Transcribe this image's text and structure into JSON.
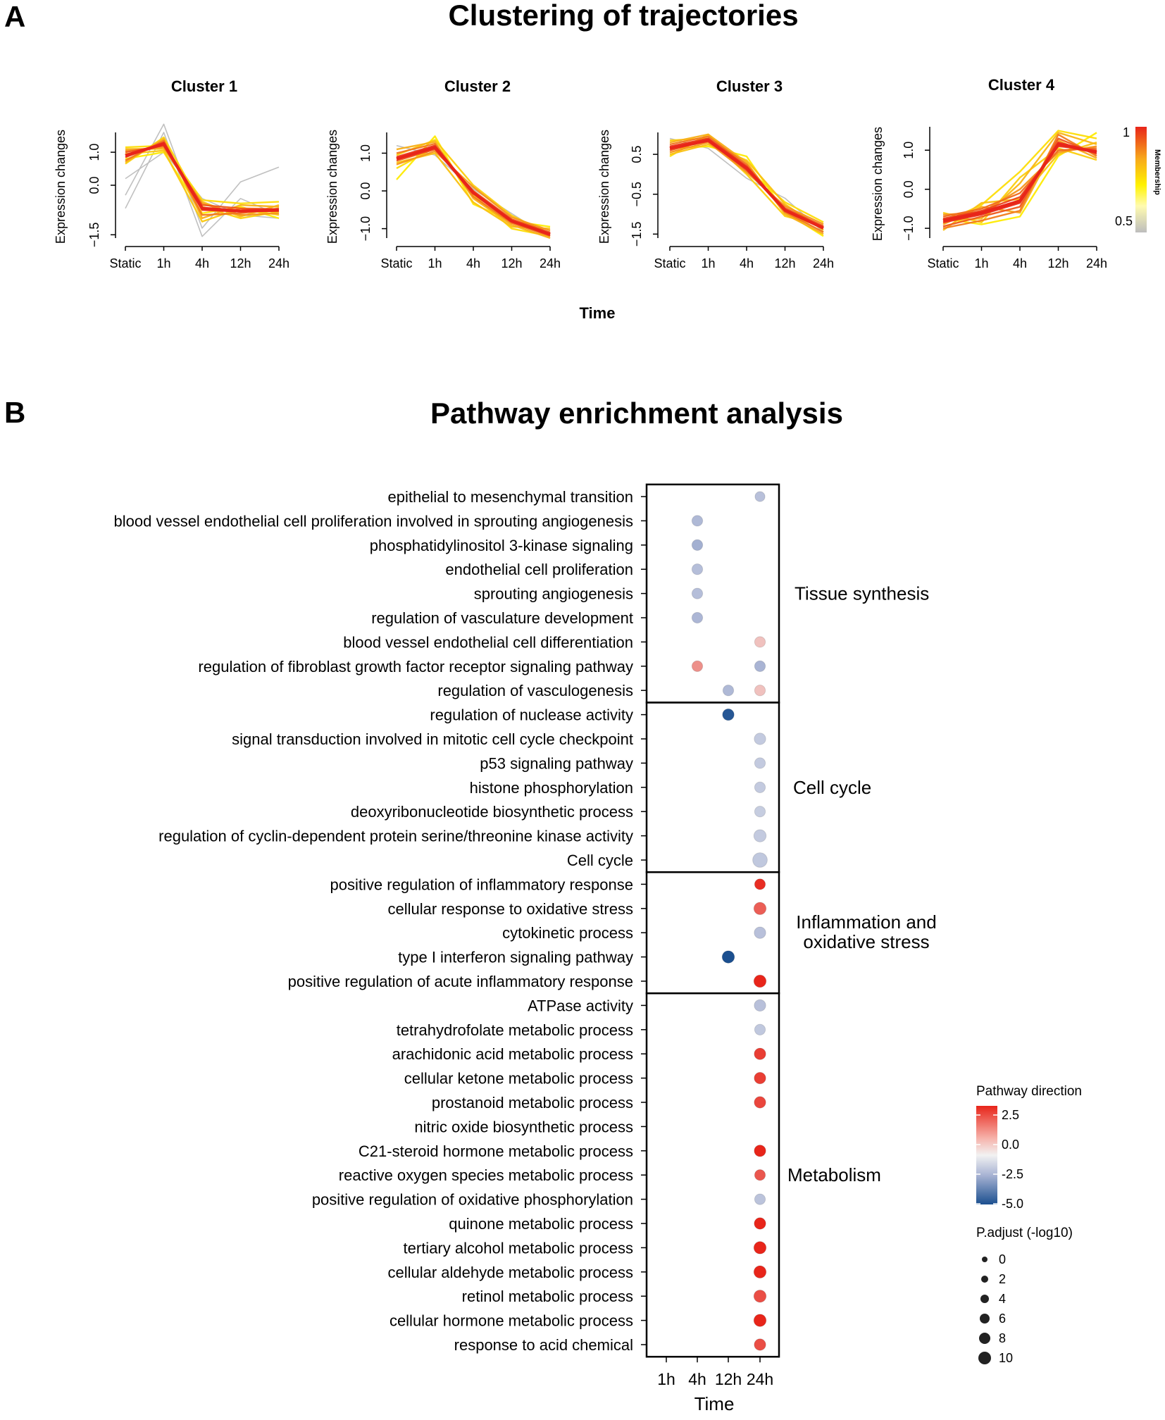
{
  "panel_a": {
    "letter": "A",
    "title": "Clustering of trajectories",
    "x_title": "Time",
    "membership_legend": {
      "title": "Membership",
      "max_label": "1",
      "min_label": "0.5"
    }
  },
  "panel_b": {
    "letter": "B",
    "title": "Pathway enrichment analysis"
  },
  "colors": {
    "membership_high": "#e8251a",
    "membership_mid": "#f7a81b",
    "membership_low": "#fff200",
    "membership_none": "#bdbdbd",
    "direction_high": "#e8251a",
    "direction_zero": "#f2f2f2",
    "direction_low": "#1b4f8f"
  },
  "chart_data": [
    {
      "type": "line",
      "title": "Cluster 1",
      "xlabel": "Time",
      "ylabel": "Expression changes",
      "categories": [
        "Static",
        "1h",
        "4h",
        "12h",
        "24h"
      ],
      "yticks": [
        "-1.5",
        "0.0",
        "1.0"
      ],
      "ylim": [
        -1.6,
        1.6
      ],
      "centroid": [
        0.9,
        1.25,
        -0.7,
        -0.78,
        -0.75
      ],
      "series": [
        {
          "name": "member",
          "membership": 0.95,
          "values": [
            0.85,
            1.3,
            -0.75,
            -0.8,
            -0.78
          ]
        },
        {
          "name": "member",
          "membership": 0.9,
          "values": [
            1.0,
            1.2,
            -0.6,
            -0.7,
            -0.72
          ]
        },
        {
          "name": "member",
          "membership": 0.85,
          "values": [
            0.75,
            1.35,
            -0.9,
            -0.85,
            -0.7
          ]
        },
        {
          "name": "member",
          "membership": 0.8,
          "values": [
            1.05,
            1.15,
            -0.55,
            -0.9,
            -0.85
          ]
        },
        {
          "name": "member",
          "membership": 0.75,
          "values": [
            0.7,
            1.4,
            -1.0,
            -0.6,
            -0.65
          ]
        },
        {
          "name": "member",
          "membership": 0.72,
          "values": [
            1.1,
            1.1,
            -0.5,
            -0.95,
            -0.6
          ]
        },
        {
          "name": "member",
          "membership": 0.68,
          "values": [
            0.95,
            1.05,
            -1.1,
            -0.7,
            -0.9
          ]
        },
        {
          "name": "member",
          "membership": 0.65,
          "values": [
            0.65,
            1.45,
            -0.65,
            -1.0,
            -0.8
          ]
        },
        {
          "name": "member",
          "membership": 0.62,
          "values": [
            1.15,
            1.2,
            -0.45,
            -0.55,
            -0.5
          ]
        },
        {
          "name": "member",
          "membership": 0.58,
          "values": [
            0.8,
            1.0,
            -0.85,
            -0.65,
            -1.0
          ]
        },
        {
          "name": "member",
          "membership": 0.5,
          "values": [
            -0.3,
            1.85,
            -1.3,
            0.1,
            0.55
          ]
        },
        {
          "name": "member",
          "membership": 0.5,
          "values": [
            -0.7,
            1.6,
            -1.55,
            -0.4,
            -0.9
          ]
        },
        {
          "name": "member",
          "membership": 0.52,
          "values": [
            0.2,
            1.0,
            -0.4,
            -0.9,
            -1.0
          ]
        }
      ]
    },
    {
      "type": "line",
      "title": "Cluster 2",
      "xlabel": "Time",
      "ylabel": "Expression changes",
      "categories": [
        "Static",
        "1h",
        "4h",
        "12h",
        "24h"
      ],
      "yticks": [
        "-1.0",
        "0.0",
        "1.0"
      ],
      "ylim": [
        -1.25,
        1.55
      ],
      "centroid": [
        0.85,
        1.15,
        -0.05,
        -0.8,
        -1.15
      ],
      "series": [
        {
          "name": "member",
          "membership": 0.95,
          "values": [
            0.9,
            1.2,
            -0.05,
            -0.8,
            -1.18
          ]
        },
        {
          "name": "member",
          "membership": 0.9,
          "values": [
            0.8,
            1.1,
            0.0,
            -0.75,
            -1.1
          ]
        },
        {
          "name": "member",
          "membership": 0.85,
          "values": [
            1.0,
            1.25,
            -0.15,
            -0.85,
            -1.2
          ]
        },
        {
          "name": "member",
          "membership": 0.8,
          "values": [
            0.7,
            1.05,
            0.1,
            -0.7,
            -1.05
          ]
        },
        {
          "name": "member",
          "membership": 0.75,
          "values": [
            1.1,
            1.3,
            -0.2,
            -0.9,
            -1.25
          ]
        },
        {
          "name": "member",
          "membership": 0.7,
          "values": [
            0.75,
            1.0,
            -0.3,
            -0.95,
            -1.0
          ]
        },
        {
          "name": "member",
          "membership": 0.66,
          "values": [
            0.95,
            1.35,
            0.15,
            -0.65,
            -1.15
          ]
        },
        {
          "name": "member",
          "membership": 0.62,
          "values": [
            0.6,
            1.15,
            -0.1,
            -1.0,
            -1.2
          ]
        },
        {
          "name": "member",
          "membership": 0.58,
          "values": [
            0.3,
            1.45,
            -0.35,
            -0.8,
            -0.95
          ]
        },
        {
          "name": "member",
          "membership": 0.54,
          "values": [
            1.2,
            0.95,
            0.05,
            -0.6,
            -1.25
          ]
        }
      ]
    },
    {
      "type": "line",
      "title": "Cluster 3",
      "xlabel": "Time",
      "ylabel": "Expression changes",
      "categories": [
        "Static",
        "1h",
        "4h",
        "12h",
        "24h"
      ],
      "yticks": [
        "-1.5",
        "-0.5",
        "0.5"
      ],
      "ylim": [
        -1.6,
        1.05
      ],
      "centroid": [
        0.65,
        0.85,
        0.15,
        -0.9,
        -1.35
      ],
      "series": [
        {
          "name": "member",
          "membership": 0.95,
          "values": [
            0.7,
            0.9,
            0.2,
            -0.9,
            -1.35
          ]
        },
        {
          "name": "member",
          "membership": 0.9,
          "values": [
            0.6,
            0.85,
            0.1,
            -0.85,
            -1.3
          ]
        },
        {
          "name": "member",
          "membership": 0.85,
          "values": [
            0.75,
            0.95,
            0.25,
            -0.95,
            -1.45
          ]
        },
        {
          "name": "member",
          "membership": 0.8,
          "values": [
            0.55,
            0.8,
            0.05,
            -0.8,
            -1.25
          ]
        },
        {
          "name": "member",
          "membership": 0.75,
          "values": [
            0.8,
            1.0,
            0.3,
            -1.0,
            -1.5
          ]
        },
        {
          "name": "member",
          "membership": 0.7,
          "values": [
            0.5,
            0.75,
            0.35,
            -0.75,
            -1.4
          ]
        },
        {
          "name": "member",
          "membership": 0.66,
          "values": [
            0.85,
            0.9,
            0.0,
            -1.05,
            -1.3
          ]
        },
        {
          "name": "member",
          "membership": 0.62,
          "values": [
            0.45,
            1.0,
            0.15,
            -0.7,
            -1.2
          ]
        },
        {
          "name": "member",
          "membership": 0.58,
          "values": [
            0.65,
            0.7,
            0.45,
            -0.95,
            -1.55
          ]
        },
        {
          "name": "member",
          "membership": 0.54,
          "values": [
            0.9,
            0.65,
            -0.1,
            -0.6,
            -1.45
          ]
        }
      ]
    },
    {
      "type": "line",
      "title": "Cluster 4",
      "xlabel": "Time",
      "ylabel": "Expression changes",
      "categories": [
        "Static",
        "1h",
        "4h",
        "12h",
        "24h"
      ],
      "yticks": [
        "-1.0",
        "0.0",
        "1.0"
      ],
      "ylim": [
        -1.25,
        1.6
      ],
      "centroid": [
        -0.8,
        -0.6,
        -0.3,
        1.15,
        0.95
      ],
      "series": [
        {
          "name": "member",
          "membership": 0.97,
          "values": [
            -0.85,
            -0.65,
            -0.35,
            1.2,
            0.95
          ]
        },
        {
          "name": "member",
          "membership": 0.93,
          "values": [
            -0.75,
            -0.55,
            -0.2,
            1.1,
            1.0
          ]
        },
        {
          "name": "member",
          "membership": 0.9,
          "values": [
            -0.95,
            -0.7,
            -0.45,
            1.3,
            0.9
          ]
        },
        {
          "name": "member",
          "membership": 0.87,
          "values": [
            -0.7,
            -0.5,
            -0.1,
            1.0,
            1.05
          ]
        },
        {
          "name": "member",
          "membership": 0.84,
          "values": [
            -1.0,
            -0.8,
            -0.55,
            1.4,
            0.85
          ]
        },
        {
          "name": "member",
          "membership": 0.8,
          "values": [
            -0.65,
            -0.6,
            0.0,
            0.95,
            1.1
          ]
        },
        {
          "name": "member",
          "membership": 0.77,
          "values": [
            -0.9,
            -0.45,
            -0.6,
            1.25,
            0.8
          ]
        },
        {
          "name": "member",
          "membership": 0.73,
          "values": [
            -0.8,
            -0.75,
            0.15,
            1.45,
            1.15
          ]
        },
        {
          "name": "member",
          "membership": 0.7,
          "values": [
            -1.05,
            -0.35,
            -0.25,
            0.9,
            1.2
          ]
        },
        {
          "name": "member",
          "membership": 0.66,
          "values": [
            -0.6,
            -0.85,
            0.3,
            1.05,
            0.75
          ]
        },
        {
          "name": "member",
          "membership": 0.62,
          "values": [
            -0.85,
            -0.4,
            0.45,
            1.5,
            1.3
          ]
        },
        {
          "name": "member",
          "membership": 0.58,
          "values": [
            -0.75,
            -0.9,
            -0.7,
            0.85,
            1.45
          ]
        }
      ]
    },
    {
      "type": "scatter",
      "title": "Pathway enrichment analysis",
      "xlabel": "Time",
      "x_categories": [
        "1h",
        "4h",
        "12h",
        "24h"
      ],
      "pathways": [
        "epithelial to mesenchymal transition",
        "blood vessel endothelial cell proliferation involved in sprouting angiogenesis",
        "phosphatidylinositol 3-kinase signaling",
        "endothelial cell proliferation",
        "sprouting angiogenesis",
        "regulation of vasculature development",
        "blood vessel endothelial cell differentiation",
        "regulation of fibroblast growth factor receptor signaling pathway",
        "regulation of vasculogenesis",
        "regulation of nuclease activity",
        "signal transduction involved in mitotic cell cycle checkpoint",
        "p53 signaling pathway",
        "histone phosphorylation",
        "deoxyribonucleotide biosynthetic process",
        "regulation of cyclin-dependent protein serine/threonine kinase activity",
        "Cell cycle",
        "positive regulation of inflammatory response",
        "cellular response to oxidative stress",
        "cytokinetic process",
        "type I interferon signaling pathway",
        "positive regulation of acute inflammatory response",
        "ATPase activity",
        "tetrahydrofolate metabolic process",
        "arachidonic acid metabolic process",
        "cellular ketone metabolic process",
        "prostanoid metabolic process",
        "nitric oxide biosynthetic process",
        "C21-steroid hormone metabolic process",
        "reactive oxygen species metabolic process",
        "positive regulation of oxidative phosphorylation",
        "quinone metabolic process",
        "tertiary alcohol metabolic process",
        "cellular aldehyde metabolic process",
        "retinol metabolic process",
        "cellular hormone metabolic process",
        "response to acid chemical"
      ],
      "groups": [
        {
          "label": "Tissue synthesis",
          "start": 0,
          "end": 8
        },
        {
          "label": "Cell cycle",
          "start": 9,
          "end": 15
        },
        {
          "label": "Inflammation and\noxidative stress",
          "start": 16,
          "end": 20
        },
        {
          "label": "Metabolism",
          "start": 21,
          "end": 35
        }
      ],
      "points": [
        {
          "pathway": 0,
          "time": "24h",
          "direction": -2.0,
          "p_adjust": 2
        },
        {
          "pathway": 1,
          "time": "4h",
          "direction": -2.3,
          "p_adjust": 3
        },
        {
          "pathway": 2,
          "time": "4h",
          "direction": -2.6,
          "p_adjust": 3
        },
        {
          "pathway": 3,
          "time": "4h",
          "direction": -2.1,
          "p_adjust": 3
        },
        {
          "pathway": 4,
          "time": "4h",
          "direction": -2.1,
          "p_adjust": 3
        },
        {
          "pathway": 5,
          "time": "4h",
          "direction": -2.4,
          "p_adjust": 3
        },
        {
          "pathway": 6,
          "time": "24h",
          "direction": 0.6,
          "p_adjust": 3
        },
        {
          "pathway": 7,
          "time": "4h",
          "direction": 1.2,
          "p_adjust": 3
        },
        {
          "pathway": 7,
          "time": "24h",
          "direction": -2.5,
          "p_adjust": 3
        },
        {
          "pathway": 8,
          "time": "12h",
          "direction": -2.3,
          "p_adjust": 3
        },
        {
          "pathway": 8,
          "time": "24h",
          "direction": 0.6,
          "p_adjust": 3
        },
        {
          "pathway": 9,
          "time": "12h",
          "direction": -4.8,
          "p_adjust": 4
        },
        {
          "pathway": 10,
          "time": "24h",
          "direction": -1.6,
          "p_adjust": 4
        },
        {
          "pathway": 11,
          "time": "24h",
          "direction": -1.6,
          "p_adjust": 3
        },
        {
          "pathway": 12,
          "time": "24h",
          "direction": -1.6,
          "p_adjust": 3
        },
        {
          "pathway": 13,
          "time": "24h",
          "direction": -1.5,
          "p_adjust": 3
        },
        {
          "pathway": 14,
          "time": "24h",
          "direction": -1.6,
          "p_adjust": 5
        },
        {
          "pathway": 15,
          "time": "24h",
          "direction": -1.7,
          "p_adjust": 8
        },
        {
          "pathway": 16,
          "time": "24h",
          "direction": 2.4,
          "p_adjust": 3
        },
        {
          "pathway": 17,
          "time": "24h",
          "direction": 1.8,
          "p_adjust": 5
        },
        {
          "pathway": 18,
          "time": "24h",
          "direction": -2.0,
          "p_adjust": 4
        },
        {
          "pathway": 19,
          "time": "12h",
          "direction": -5.0,
          "p_adjust": 5
        },
        {
          "pathway": 20,
          "time": "24h",
          "direction": 2.5,
          "p_adjust": 5
        },
        {
          "pathway": 21,
          "time": "24h",
          "direction": -2.0,
          "p_adjust": 4
        },
        {
          "pathway": 22,
          "time": "24h",
          "direction": -1.7,
          "p_adjust": 3
        },
        {
          "pathway": 23,
          "time": "24h",
          "direction": 2.2,
          "p_adjust": 4
        },
        {
          "pathway": 24,
          "time": "24h",
          "direction": 2.2,
          "p_adjust": 4
        },
        {
          "pathway": 25,
          "time": "24h",
          "direction": 2.1,
          "p_adjust": 4
        },
        {
          "pathway": 27,
          "time": "24h",
          "direction": 2.6,
          "p_adjust": 4
        },
        {
          "pathway": 28,
          "time": "24h",
          "direction": 1.9,
          "p_adjust": 3
        },
        {
          "pathway": 29,
          "time": "24h",
          "direction": -1.9,
          "p_adjust": 3
        },
        {
          "pathway": 30,
          "time": "24h",
          "direction": 2.7,
          "p_adjust": 4
        },
        {
          "pathway": 31,
          "time": "24h",
          "direction": 2.8,
          "p_adjust": 5
        },
        {
          "pathway": 32,
          "time": "24h",
          "direction": 2.8,
          "p_adjust": 5
        },
        {
          "pathway": 33,
          "time": "24h",
          "direction": 2.0,
          "p_adjust": 5
        },
        {
          "pathway": 34,
          "time": "24h",
          "direction": 2.5,
          "p_adjust": 5
        },
        {
          "pathway": 35,
          "time": "24h",
          "direction": 2.0,
          "p_adjust": 4
        }
      ],
      "legend_direction": {
        "title": "Pathway direction",
        "ticks": [
          "2.5",
          "0.0",
          "-2.5",
          "-5.0"
        ],
        "range": [
          -5.0,
          2.5
        ]
      },
      "legend_size": {
        "title": "P.adjust (-log10)",
        "values": [
          0,
          2,
          4,
          6,
          8,
          10
        ],
        "labels": [
          "0",
          "2",
          "4",
          "6",
          "8",
          "10"
        ]
      }
    }
  ]
}
